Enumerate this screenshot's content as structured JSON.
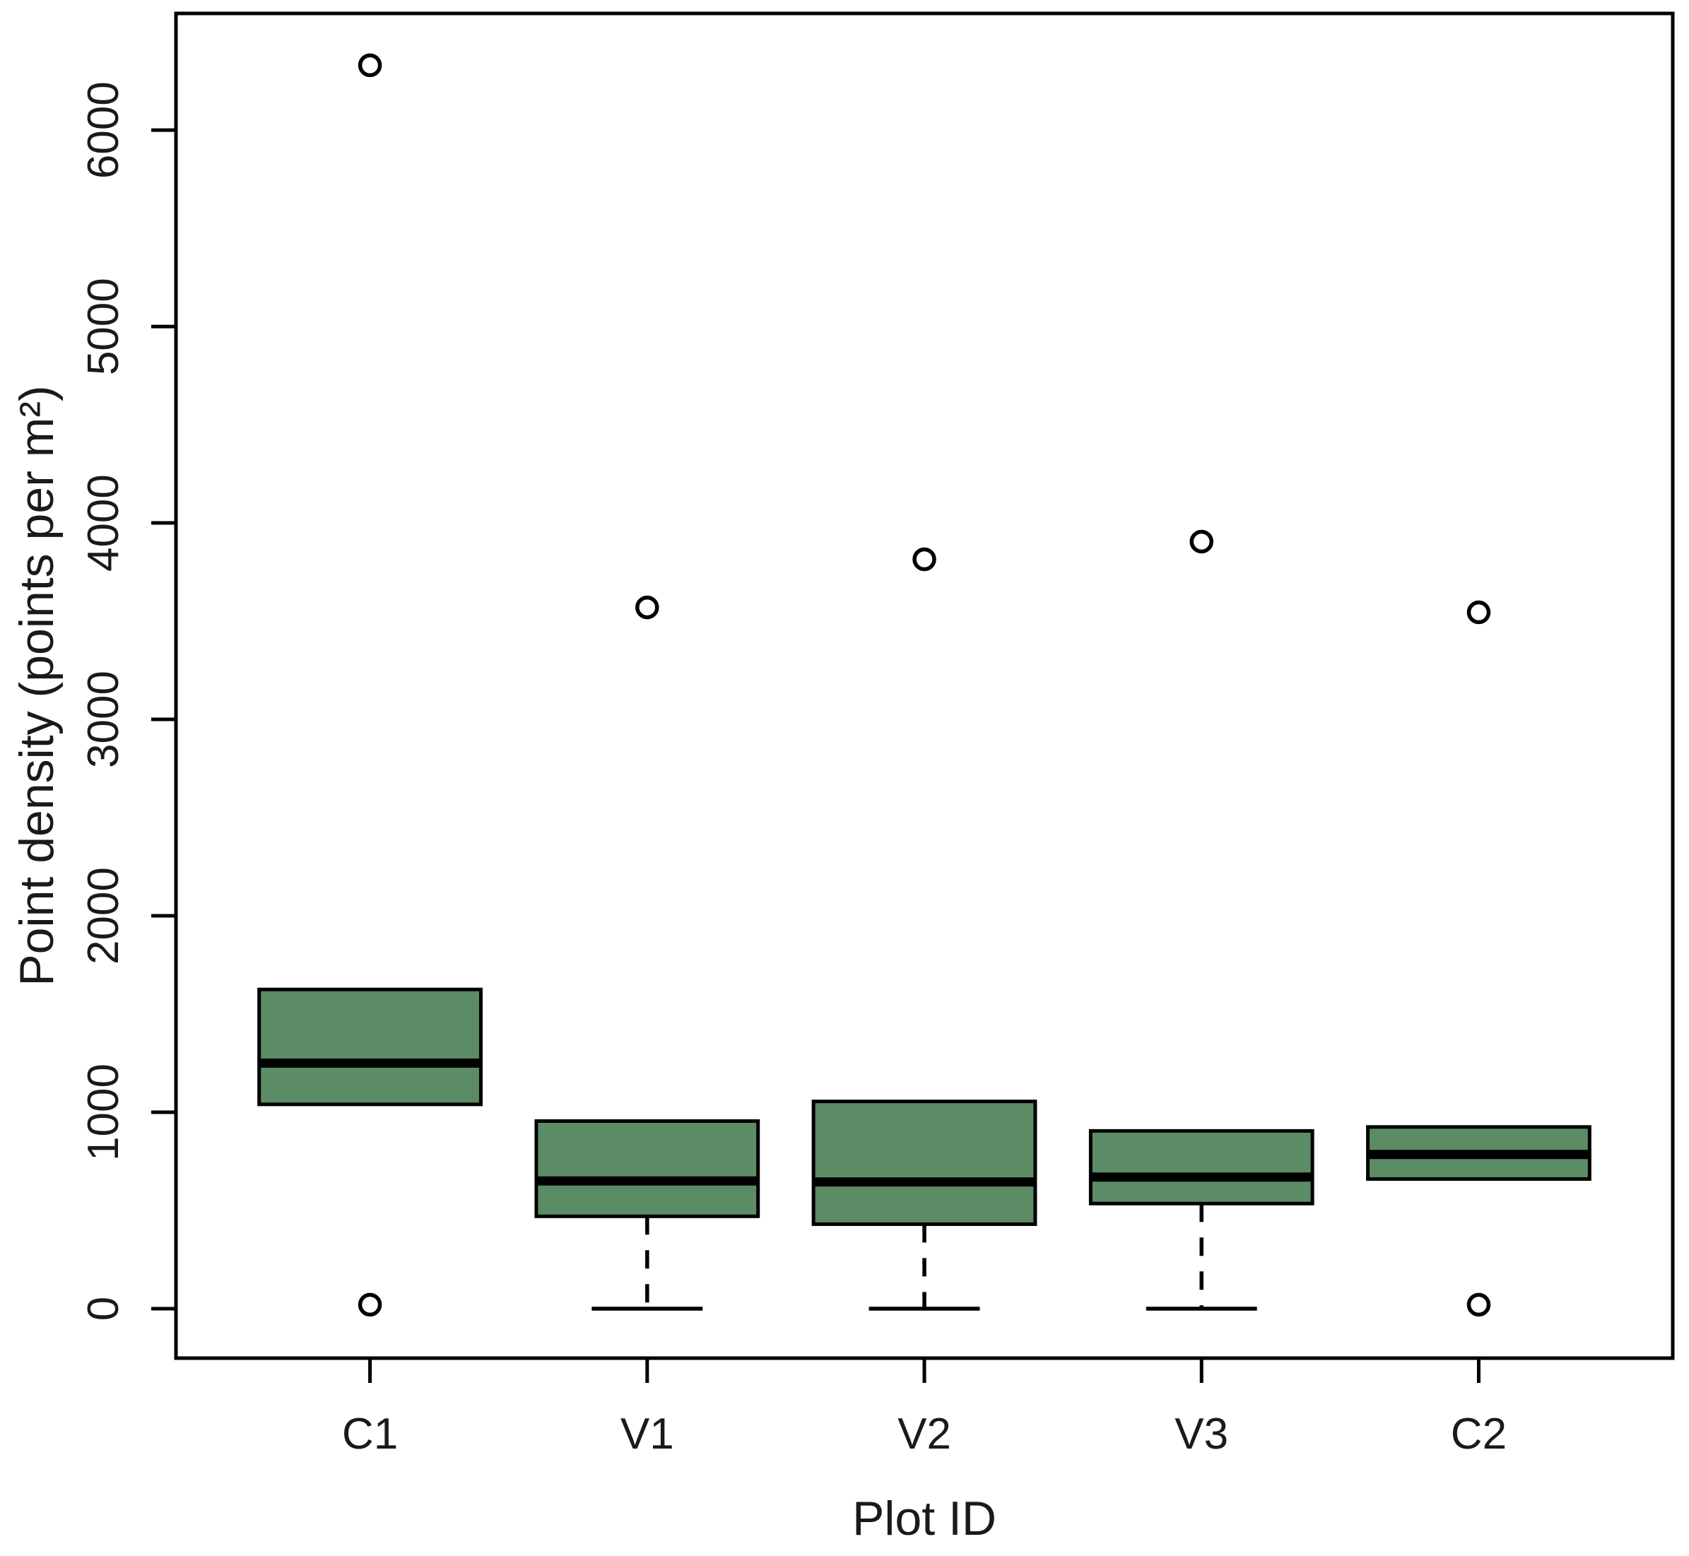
{
  "figure_title": "",
  "chart_data": {
    "type": "boxplot",
    "title": "",
    "xlabel": "Plot ID",
    "ylabel": "Point density (points per m²)",
    "categories": [
      "C1",
      "V1",
      "V2",
      "V3",
      "C2"
    ],
    "y_ticks": [
      0,
      1000,
      2000,
      3000,
      4000,
      5000,
      6000
    ],
    "ylim": [
      -252,
      6594
    ],
    "grid": false,
    "legend": "none",
    "colors": {
      "box_fill": "#5b8c66",
      "line": "#000000",
      "outlier_fill": "#ffffff",
      "background": "#ffffff"
    },
    "series": [
      {
        "label": "C1",
        "q1": 1040,
        "median": 1250,
        "q3": 1625,
        "whisker_low": null,
        "whisker_high": null,
        "outliers": [
          6330,
          20
        ]
      },
      {
        "label": "V1",
        "q1": 470,
        "median": 650,
        "q3": 955,
        "whisker_low": 0,
        "whisker_high": null,
        "outliers": [
          3570
        ]
      },
      {
        "label": "V2",
        "q1": 430,
        "median": 645,
        "q3": 1055,
        "whisker_low": 0,
        "whisker_high": null,
        "outliers": [
          3815
        ]
      },
      {
        "label": "V3",
        "q1": 535,
        "median": 670,
        "q3": 905,
        "whisker_low": 0,
        "whisker_high": null,
        "outliers": [
          3905
        ]
      },
      {
        "label": "C2",
        "q1": 660,
        "median": 785,
        "q3": 925,
        "whisker_low": null,
        "whisker_high": null,
        "outliers": [
          3545,
          20
        ]
      }
    ]
  }
}
